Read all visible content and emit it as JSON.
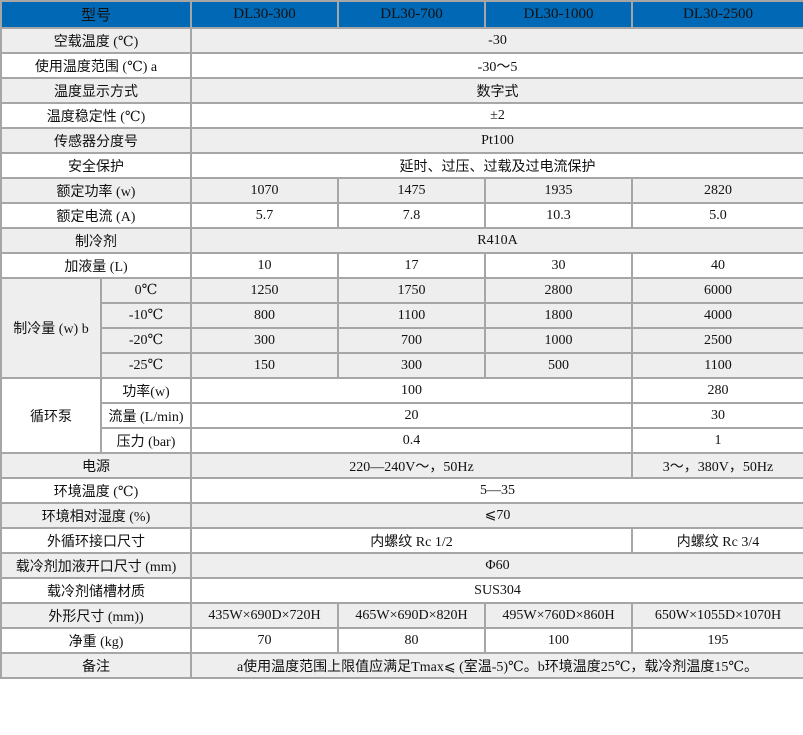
{
  "header": {
    "label": "型号",
    "models": [
      "DL30-300",
      "DL30-700",
      "DL30-1000",
      "DL30-2500"
    ]
  },
  "rows": [
    {
      "label": "空载温度 (℃)",
      "values": [
        "-30"
      ]
    },
    {
      "label": "使用温度范围 (℃) a",
      "values": [
        "-30～5"
      ]
    },
    {
      "label": "温度显示方式",
      "values": [
        "数字式"
      ]
    },
    {
      "label": "温度稳定性 (℃)",
      "values": [
        "±2"
      ]
    },
    {
      "label": "传感器分度号",
      "values": [
        "Pt100"
      ]
    },
    {
      "label": "安全保护",
      "values": [
        "延时、过压、过载及过电流保护"
      ]
    },
    {
      "label": "额定功率 (w)",
      "values": [
        "1070",
        "1475",
        "1935",
        "2820"
      ]
    },
    {
      "label": "额定电流 (A)",
      "values": [
        "5.7",
        "7.8",
        "10.3",
        "5.0"
      ]
    },
    {
      "label": "制冷剂",
      "values": [
        "R410A"
      ]
    },
    {
      "label": "加液量 (L)",
      "values": [
        "10",
        "17",
        "30",
        "40"
      ]
    }
  ],
  "cooling": {
    "label": "制冷量 (w) b",
    "rows": [
      {
        "temp": "0℃",
        "values": [
          "1250",
          "1750",
          "2800",
          "6000"
        ]
      },
      {
        "temp": "-10℃",
        "values": [
          "800",
          "1100",
          "1800",
          "4000"
        ]
      },
      {
        "temp": "-20℃",
        "values": [
          "300",
          "700",
          "1000",
          "2500"
        ]
      },
      {
        "temp": "-25℃",
        "values": [
          "150",
          "300",
          "500",
          "1100"
        ]
      }
    ]
  },
  "pump": {
    "label": "循环泵",
    "rows": [
      {
        "name": "功率(w)",
        "values": [
          "100",
          "280"
        ]
      },
      {
        "name": "流量 (L/min)",
        "values": [
          "20",
          "30"
        ]
      },
      {
        "name": "压力 (bar)",
        "values": [
          "0.4",
          "1"
        ]
      }
    ]
  },
  "rows2": [
    {
      "label": "电源",
      "values": [
        "220—240V～，50Hz",
        "3～，380V，50Hz"
      ]
    },
    {
      "label": "环境温度 (℃)",
      "values": [
        "5—35"
      ]
    },
    {
      "label": "环境相对湿度 (%)",
      "values": [
        "⩽70"
      ]
    },
    {
      "label": "外循环接口尺寸",
      "values": [
        "内螺纹 Rc 1/2",
        "内螺纹 Rc 3/4"
      ]
    },
    {
      "label": "载冷剂加液开口尺寸 (mm)",
      "values": [
        "Φ60"
      ]
    },
    {
      "label": "载冷剂储槽材质",
      "values": [
        "SUS304"
      ]
    },
    {
      "label": "外形尺寸 (mm))",
      "values": [
        "435W×690D×720H",
        "465W×690D×820H",
        "495W×760D×860H",
        "650W×1055D×1070H"
      ]
    },
    {
      "label": "净重 (kg)",
      "values": [
        "70",
        "80",
        "100",
        "195"
      ]
    },
    {
      "label": "备注",
      "values": [
        "a使用温度范围上限值应满足Tmax⩽ (室温-5)℃。b环境温度25℃，载冷剂温度15℃。"
      ]
    }
  ],
  "colors": {
    "header_bg": "#0068b4",
    "row_alt_bg": "#eeeeee",
    "border": "#a6a6a6"
  }
}
